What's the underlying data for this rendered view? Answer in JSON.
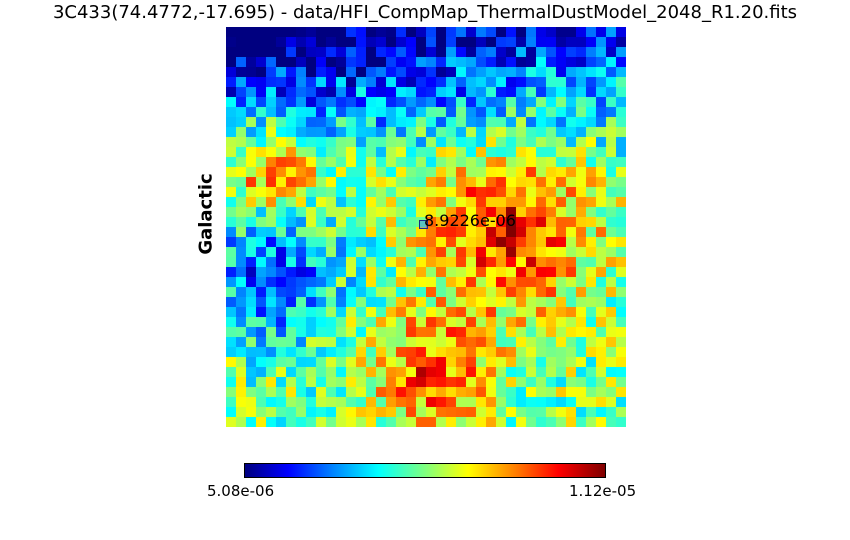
{
  "title": "3C433(74.4772,-17.695) - data/HFI_CompMap_ThermalDustModel_2048_R1.20.fits",
  "chart_data": {
    "type": "heatmap",
    "title": "3C433(74.4772,-17.695) - data/HFI_CompMap_ThermalDustModel_2048_R1.20.fits",
    "ylabel": "Galactic",
    "colormap": "jet",
    "color_range": [
      5.08e-06,
      1.12e-05
    ],
    "colorbar_ticks": [
      "5.08e-06",
      "1.12e-05"
    ],
    "center_annotation": "8.9226e-06",
    "center_value": 8.9226e-06
  }
}
